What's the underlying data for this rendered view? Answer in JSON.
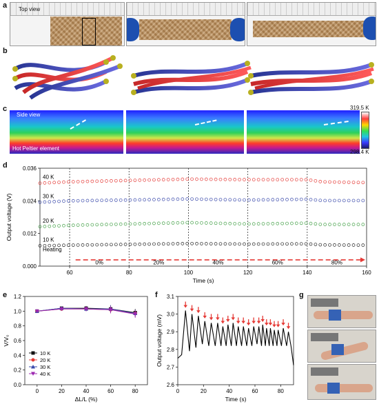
{
  "panels": {
    "a": {
      "label": "a",
      "caption": "Top view"
    },
    "b": {
      "label": "b"
    },
    "c": {
      "label": "c",
      "caption_top": "Side view",
      "caption_bottom": "Hot Peltier element",
      "colorbar_max": "319.5 K",
      "colorbar_min": "298.4 K"
    },
    "d": {
      "label": "d"
    },
    "e": {
      "label": "e"
    },
    "f": {
      "label": "f"
    },
    "g": {
      "label": "g"
    }
  },
  "chart_data": [
    {
      "id": "d",
      "type": "scatter",
      "xlabel": "Time (s)",
      "ylabel": "Output voltage (V)",
      "xlim": [
        50,
        160
      ],
      "ylim": [
        0,
        0.036
      ],
      "xticks": [
        "60",
        "80",
        "100",
        "120",
        "140",
        "160"
      ],
      "yticks": [
        "0.000",
        "0.012",
        "0.024",
        "0.036"
      ],
      "series": [
        {
          "name": "40 K",
          "color": "#e53935",
          "values": [
            [
              50,
              0.0305
            ],
            [
              60,
              0.031
            ],
            [
              80,
              0.0315
            ],
            [
              100,
              0.032
            ],
            [
              120,
              0.0318
            ],
            [
              140,
              0.0318
            ],
            [
              145,
              0.031
            ],
            [
              160,
              0.0307
            ]
          ]
        },
        {
          "name": "30 K",
          "color": "#3949ab",
          "values": [
            [
              50,
              0.0235
            ],
            [
              60,
              0.024
            ],
            [
              80,
              0.0243
            ],
            [
              100,
              0.0247
            ],
            [
              120,
              0.0243
            ],
            [
              140,
              0.0246
            ],
            [
              145,
              0.0241
            ],
            [
              160,
              0.0241
            ]
          ]
        },
        {
          "name": "20 K",
          "color": "#43a047",
          "values": [
            [
              50,
              0.0145
            ],
            [
              60,
              0.015
            ],
            [
              80,
              0.0155
            ],
            [
              100,
              0.016
            ],
            [
              120,
              0.0155
            ],
            [
              140,
              0.0158
            ],
            [
              145,
              0.0153
            ],
            [
              160,
              0.0153
            ]
          ]
        },
        {
          "name": "10 K",
          "color": "#222222",
          "values": [
            [
              50,
              0.0075
            ],
            [
              60,
              0.0077
            ],
            [
              80,
              0.008
            ],
            [
              100,
              0.0083
            ],
            [
              120,
              0.0081
            ],
            [
              140,
              0.0082
            ],
            [
              145,
              0.0078
            ],
            [
              160,
              0.0077
            ]
          ]
        }
      ],
      "annotations": {
        "heating": "Heating",
        "strain_labels": [
          "0%",
          "20%",
          "40%",
          "60%",
          "80%"
        ],
        "strain_x": [
          70,
          90,
          110,
          130,
          150
        ],
        "dividers": [
          60,
          80,
          100,
          120,
          140
        ]
      }
    },
    {
      "id": "e",
      "type": "line",
      "xlabel": "ΔL/L (%)",
      "ylabel": "V/V₀",
      "xlim": [
        -10,
        90
      ],
      "ylim": [
        0,
        1.2
      ],
      "xticks": [
        "0",
        "20",
        "40",
        "60",
        "80"
      ],
      "yticks": [
        "0.0",
        "0.2",
        "0.4",
        "0.6",
        "0.8",
        "1.0",
        "1.2"
      ],
      "x": [
        0,
        20,
        40,
        60,
        80
      ],
      "series": [
        {
          "name": "10 K",
          "color": "#111111",
          "marker": "square",
          "values": [
            1.0,
            1.04,
            1.04,
            1.03,
            0.98
          ]
        },
        {
          "name": "20 K",
          "color": "#e53935",
          "marker": "circle",
          "values": [
            1.0,
            1.03,
            1.03,
            1.02,
            0.97
          ]
        },
        {
          "name": "30 K",
          "color": "#3949ab",
          "marker": "triangle",
          "values": [
            1.0,
            1.04,
            1.03,
            1.03,
            0.97
          ]
        },
        {
          "name": "40 K",
          "color": "#9c27b0",
          "marker": "tri-down",
          "values": [
            1.0,
            1.03,
            1.03,
            1.02,
            0.96
          ]
        }
      ],
      "error": [
        0.0,
        0.02,
        0.03,
        0.05,
        0.05
      ]
    },
    {
      "id": "f",
      "type": "line",
      "xlabel": "Time (s)",
      "ylabel": "Output voltage (mV)",
      "xlim": [
        0,
        90
      ],
      "ylim": [
        2.6,
        3.1
      ],
      "xticks": [
        "0",
        "20",
        "40",
        "60",
        "80"
      ],
      "yticks": [
        "2.6",
        "2.7",
        "2.8",
        "2.9",
        "3.0",
        "3.1"
      ],
      "peaks": {
        "x": [
          6,
          11,
          16,
          21,
          26,
          31,
          35,
          39,
          43,
          47,
          51,
          55,
          59,
          63,
          66,
          69,
          72,
          75,
          78,
          82,
          86
        ],
        "y": [
          3.02,
          3.0,
          2.99,
          2.96,
          2.95,
          2.95,
          2.93,
          2.94,
          2.95,
          2.93,
          2.93,
          2.92,
          2.93,
          2.93,
          2.94,
          2.92,
          2.92,
          2.91,
          2.91,
          2.92,
          2.9
        ]
      },
      "troughs_y": [
        2.79,
        2.81,
        2.83,
        2.82,
        2.82,
        2.82,
        2.82,
        2.82,
        2.82,
        2.82,
        2.82,
        2.82,
        2.83,
        2.82,
        2.82,
        2.82,
        2.82,
        2.82,
        2.82,
        2.82
      ],
      "start": [
        [
          0,
          2.75
        ],
        [
          3,
          2.77
        ]
      ],
      "end": [
        [
          88,
          2.82
        ],
        [
          90,
          2.71
        ]
      ],
      "marker_color": "#e53935"
    }
  ]
}
